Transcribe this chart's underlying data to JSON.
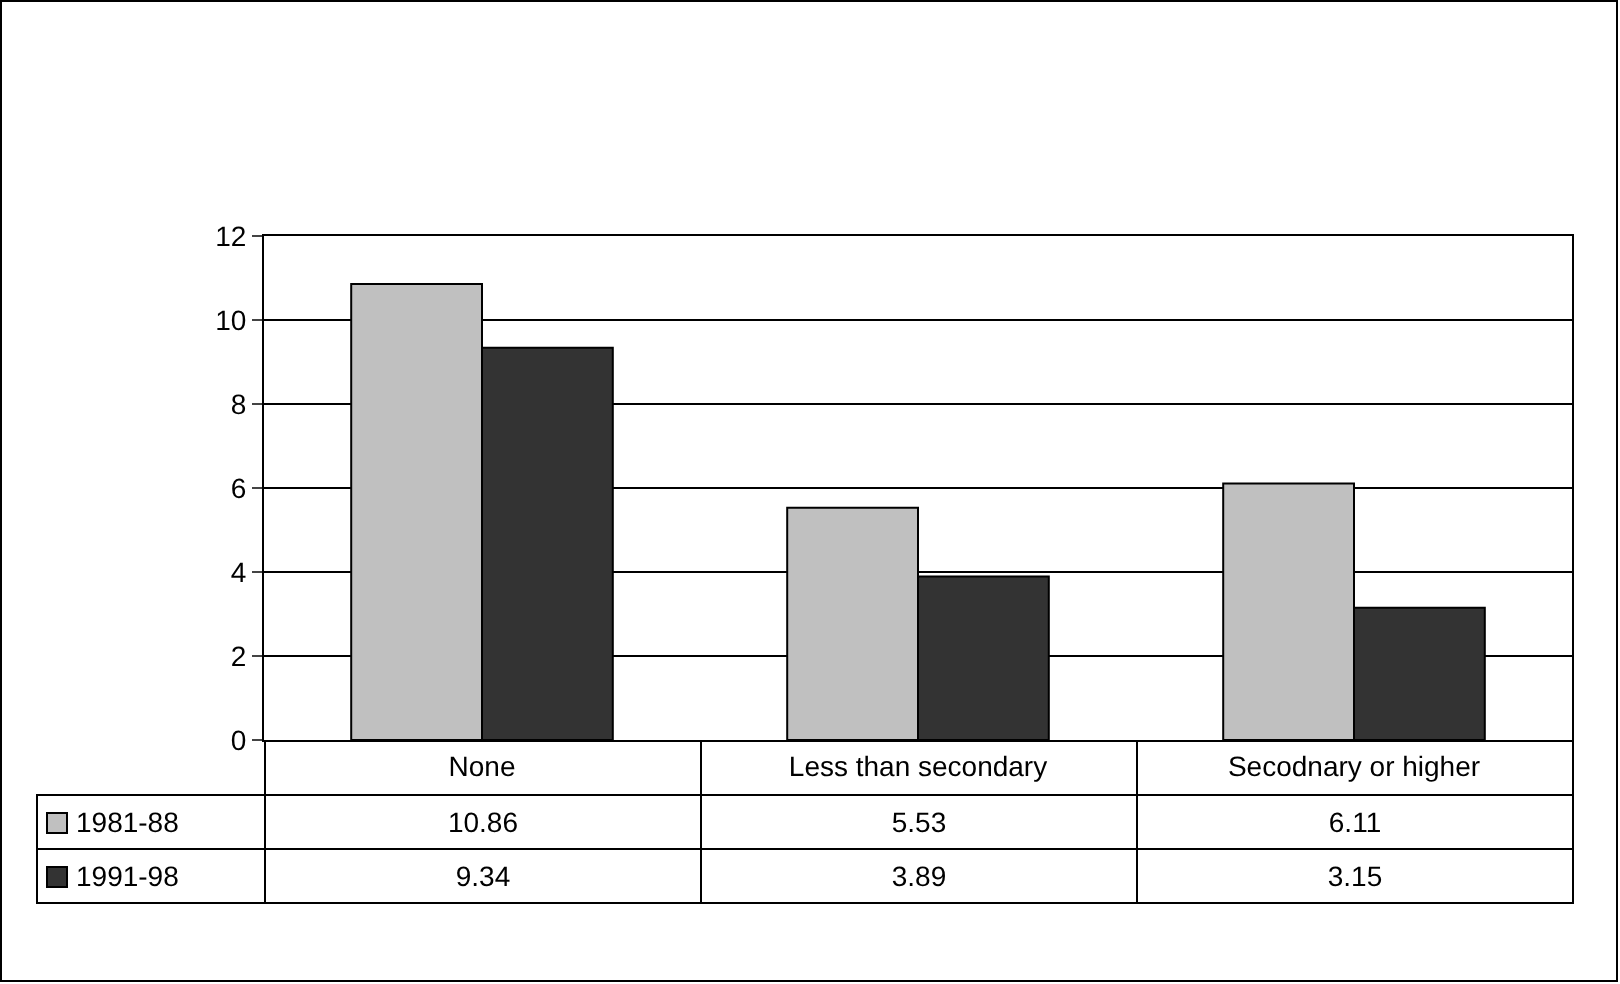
{
  "chart_data": {
    "type": "bar",
    "categories": [
      "None",
      "Less than secondary",
      "Secodnary or higher"
    ],
    "series": [
      {
        "name": "1981-88",
        "color": "#c0c0c0",
        "values": [
          10.86,
          5.53,
          6.11
        ]
      },
      {
        "name": "1991-98",
        "color": "#333333",
        "values": [
          9.34,
          3.89,
          3.15
        ]
      }
    ],
    "ylim": [
      0,
      12
    ],
    "yticks": [
      0,
      2,
      4,
      6,
      8,
      10,
      12
    ],
    "grid": "y",
    "legend": "bottom",
    "data_labels": true
  }
}
